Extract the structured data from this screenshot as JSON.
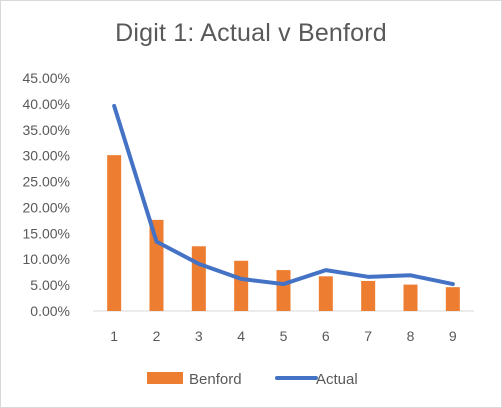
{
  "chart_data": {
    "type": "bar",
    "title": "Digit 1: Actual v Benford",
    "xlabel": "",
    "ylabel": "",
    "categories": [
      "1",
      "2",
      "3",
      "4",
      "5",
      "6",
      "7",
      "8",
      "9"
    ],
    "ylim": [
      0,
      0.45
    ],
    "y_tick_values": [
      0,
      0.05,
      0.1,
      0.15,
      0.2,
      0.25,
      0.3,
      0.35,
      0.4,
      0.45
    ],
    "y_tick_labels": [
      "0.00%",
      "5.00%",
      "10.00%",
      "15.00%",
      "20.00%",
      "25.00%",
      "30.00%",
      "35.00%",
      "40.00%",
      "45.00%"
    ],
    "grid": false,
    "legend_position": "bottom",
    "series": [
      {
        "name": "Benford",
        "type": "bar",
        "color": "#ED7D31",
        "values": [
          0.301,
          0.176,
          0.125,
          0.097,
          0.079,
          0.067,
          0.058,
          0.051,
          0.046
        ]
      },
      {
        "name": "Actual",
        "type": "line",
        "color": "#4472C4",
        "values": [
          0.396,
          0.134,
          0.091,
          0.062,
          0.052,
          0.079,
          0.066,
          0.069,
          0.052
        ]
      }
    ]
  }
}
